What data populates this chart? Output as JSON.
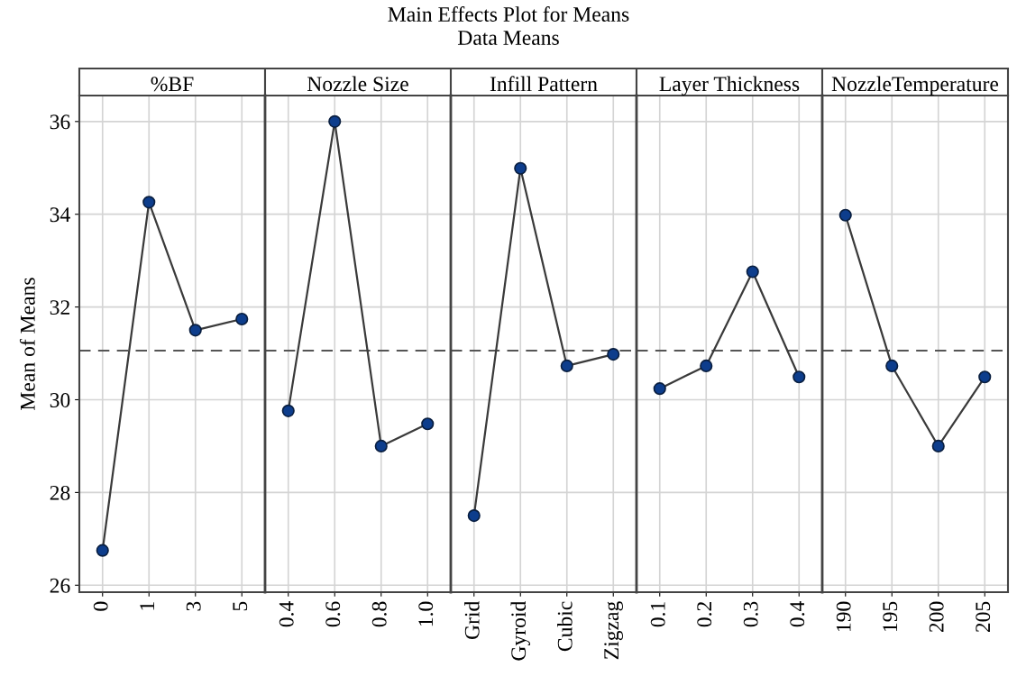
{
  "chart_data": [
    {
      "type": "line",
      "title": "%BF",
      "ylabel": "Mean of Means",
      "annotations": [
        "Main Effects Plot for Means",
        "Data Means"
      ],
      "categories": [
        "0",
        "1",
        "3",
        "5"
      ],
      "series": [
        {
          "color": "#0d3d8c",
          "values": [
            26.75,
            34.26,
            31.5,
            31.74
          ]
        }
      ],
      "ylim": [
        25.85,
        36.56
      ],
      "yticks": [
        26,
        28,
        30,
        32,
        34,
        36
      ],
      "grid": true,
      "marker": "circle",
      "line_style": "solid",
      "ref_lines": [
        {
          "axis": "y",
          "value": 31.06,
          "line_style": "dashed",
          "color": "#555555"
        }
      ]
    },
    {
      "type": "line",
      "title": "Nozzle Size",
      "categories": [
        "0.4",
        "0.6",
        "0.8",
        "1.0"
      ],
      "series": [
        {
          "color": "#0d3d8c",
          "values": [
            29.76,
            36.0,
            29.0,
            29.48
          ]
        }
      ],
      "ylim": [
        25.85,
        36.56
      ],
      "tick_labels": "x",
      "grid": true,
      "marker": "circle",
      "line_style": "solid",
      "ref_lines": [
        {
          "axis": "y",
          "value": 31.06,
          "line_style": "dashed",
          "color": "#555555"
        }
      ]
    },
    {
      "type": "line",
      "title": "Infill Pattern",
      "categories": [
        "Grid",
        "Gyroid",
        "Cubic",
        "Zigzag"
      ],
      "series": [
        {
          "color": "#0d3d8c",
          "values": [
            27.5,
            34.99,
            30.73,
            30.98
          ]
        }
      ],
      "ylim": [
        25.85,
        36.56
      ],
      "tick_labels": "x",
      "grid": true,
      "marker": "circle",
      "line_style": "solid",
      "ref_lines": [
        {
          "axis": "y",
          "value": 31.06,
          "line_style": "dashed",
          "color": "#555555"
        }
      ]
    },
    {
      "type": "line",
      "title": "Layer Thickness",
      "categories": [
        "0.1",
        "0.2",
        "0.3",
        "0.4"
      ],
      "series": [
        {
          "color": "#0d3d8c",
          "values": [
            30.24,
            30.73,
            32.76,
            30.49
          ]
        }
      ],
      "ylim": [
        25.85,
        36.56
      ],
      "tick_labels": "x",
      "grid": true,
      "marker": "circle",
      "line_style": "solid",
      "ref_lines": [
        {
          "axis": "y",
          "value": 31.06,
          "line_style": "dashed",
          "color": "#555555"
        }
      ]
    },
    {
      "type": "line",
      "title": "NozzleTemperature",
      "categories": [
        "190",
        "195",
        "200",
        "205"
      ],
      "series": [
        {
          "color": "#0d3d8c",
          "values": [
            33.98,
            30.73,
            29.0,
            30.49
          ]
        }
      ],
      "ylim": [
        25.85,
        36.56
      ],
      "tick_labels": "x",
      "grid": true,
      "marker": "circle",
      "line_style": "solid",
      "ref_lines": [
        {
          "axis": "y",
          "value": 31.06,
          "line_style": "dashed",
          "color": "#555555"
        }
      ]
    }
  ]
}
